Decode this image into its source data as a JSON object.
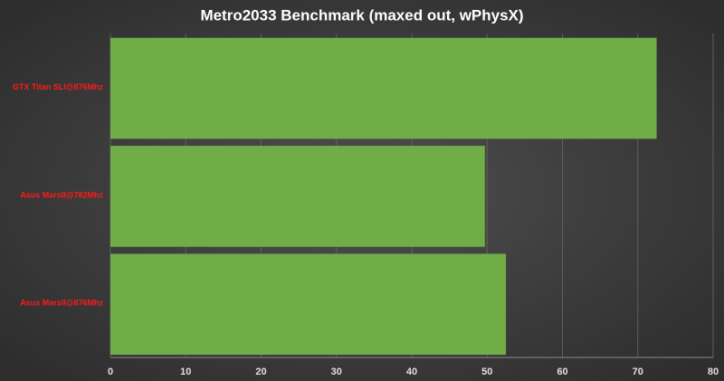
{
  "chart_data": {
    "type": "hbar",
    "title": "Metro2033 Benchmark (maxed out, wPhysX)",
    "categories": [
      "GTX Titan SLI@876Mhz",
      "Asus MarsII@782Mhz",
      "Asus MarsII@876Mhz"
    ],
    "values": [
      72.5,
      49.7,
      52.5
    ],
    "color": "#70ad47",
    "xlim": [
      0,
      80
    ],
    "xticks": [
      0,
      10,
      20,
      30,
      40,
      50,
      60,
      70,
      80
    ],
    "grid": true
  }
}
